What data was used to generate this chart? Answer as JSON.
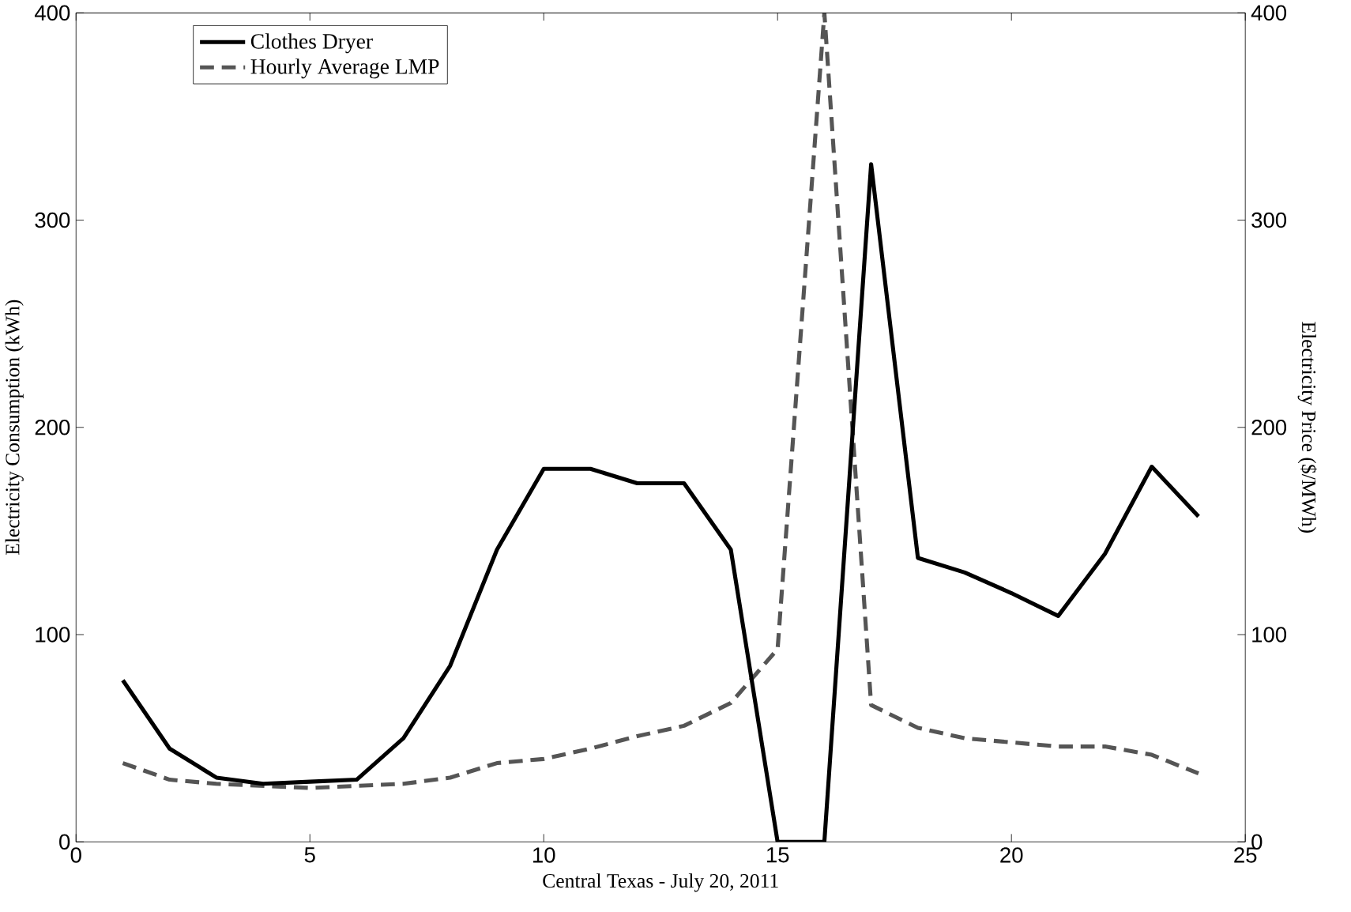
{
  "chart_data": {
    "type": "line",
    "xlabel": "Central Texas - July 20, 2011",
    "ylabel": "Electricity Consumption (kWh)",
    "y2label": "Electricity Price ($/MWh)",
    "x": [
      1,
      2,
      3,
      4,
      5,
      6,
      7,
      8,
      9,
      10,
      11,
      12,
      13,
      14,
      15,
      16,
      17,
      18,
      19,
      20,
      21,
      22,
      23,
      24
    ],
    "series": [
      {
        "name": "Clothes Dryer",
        "color": "#000000",
        "line_style": "solid",
        "values": [
          78,
          45,
          31,
          28,
          29,
          30,
          50,
          85,
          141,
          180,
          180,
          173,
          173,
          141,
          0,
          0,
          327,
          137,
          130,
          120,
          109,
          139,
          181,
          157
        ]
      },
      {
        "name": "Hourly Average LMP",
        "color": "#555555",
        "line_style": "dashed",
        "axis": "y2",
        "values": [
          38,
          30,
          28,
          27,
          26,
          27,
          28,
          31,
          38,
          40,
          45,
          51,
          56,
          67,
          93,
          400,
          66,
          55,
          50,
          48,
          46,
          46,
          42,
          33
        ]
      }
    ],
    "xlim": [
      0,
      25
    ],
    "xticks": [
      0,
      5,
      10,
      15,
      20,
      25
    ],
    "ylim": [
      0,
      400
    ],
    "yticks": [
      0,
      100,
      200,
      300,
      400
    ],
    "y2lim": [
      0,
      400
    ],
    "y2ticks": [
      0,
      100,
      200,
      300,
      400
    ],
    "legend": "top left",
    "grid": false,
    "marker": "none"
  }
}
